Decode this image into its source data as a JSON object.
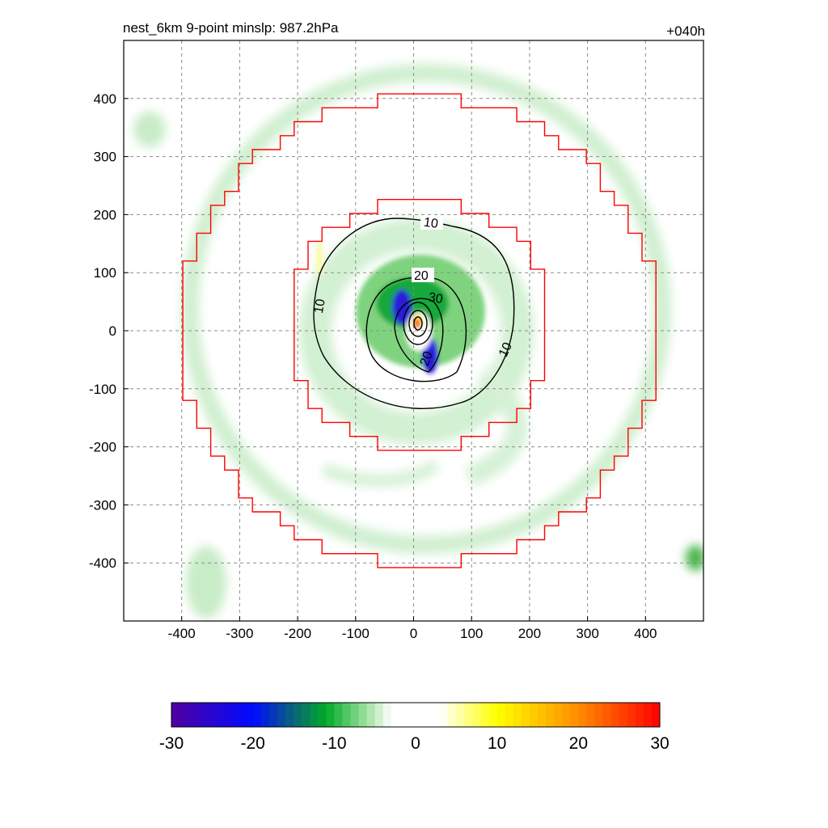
{
  "chart_data": {
    "type": "heatmap",
    "title_left": "nest_6km  9-point minslp: 987.2hPa",
    "title_right": "+040h",
    "xlim": [
      -500,
      500
    ],
    "ylim": [
      -500,
      500
    ],
    "x_ticks": [
      -400,
      -300,
      -200,
      -100,
      0,
      100,
      200,
      300,
      400
    ],
    "y_ticks": [
      400,
      300,
      200,
      100,
      0,
      -100,
      -200,
      -300,
      -400
    ],
    "grid": true,
    "colorbar": {
      "min": -30,
      "max": 30,
      "ticks": [
        -30,
        -20,
        -10,
        0,
        10,
        20,
        30
      ]
    },
    "contour_labels": [
      "10",
      "20",
      "30",
      "10",
      "10",
      "20"
    ],
    "domain_boxes": [
      {
        "name": "outer",
        "radius": 400,
        "color": "#ff0000"
      },
      {
        "name": "inner",
        "radius": 215,
        "color": "#ff0000"
      }
    ],
    "min_pressure_hpa": 987.2
  }
}
